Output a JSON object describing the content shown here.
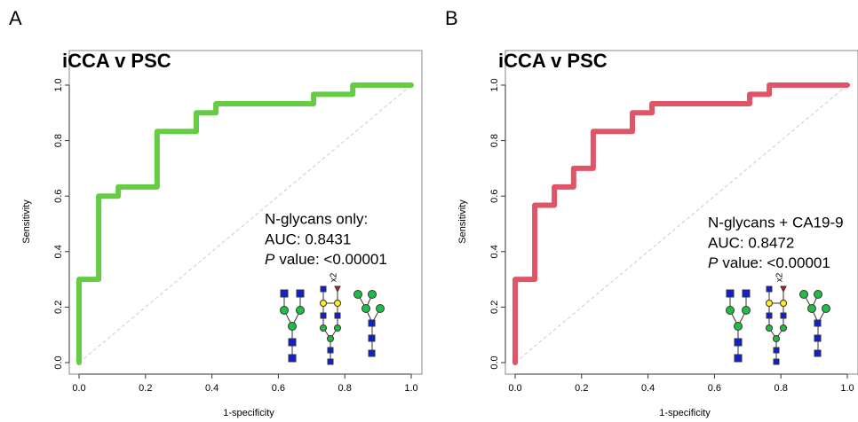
{
  "chart_data": [
    {
      "panel": "A",
      "type": "line",
      "title": "iCCA v PSC",
      "x_label": "1-specificity",
      "y_label": "Sensitivity",
      "x": [
        0,
        0,
        0.059,
        0.059,
        0.118,
        0.118,
        0.235,
        0.235,
        0.353,
        0.353,
        0.412,
        0.412,
        0.706,
        0.706,
        0.824,
        0.824,
        1
      ],
      "values": [
        0,
        0.3,
        0.3,
        0.6,
        0.6,
        0.633,
        0.633,
        0.833,
        0.833,
        0.9,
        0.9,
        0.933,
        0.933,
        0.967,
        0.967,
        1,
        1
      ],
      "color": "#66cc44",
      "xlim": [
        0,
        1
      ],
      "ylim": [
        0,
        1
      ],
      "xticks": [
        {
          "value": 0,
          "label": "0.0"
        },
        0.2,
        0.4,
        0.6,
        0.8,
        {
          "value": 1,
          "label": "1.0"
        }
      ],
      "yticks": [
        {
          "value": 0,
          "label": "0.0"
        },
        0.2,
        0.4,
        0.6,
        0.8,
        {
          "value": 1,
          "label": "1.0"
        }
      ],
      "annotations": [
        "N-glycans only:",
        "AUC: 0.8431"
      ],
      "p_symbol": "P",
      "p_text": "value: <0.00001",
      "glycan_label": "x2"
    },
    {
      "panel": "B",
      "type": "line",
      "title": "iCCA v PSC",
      "x_label": "1-specificity",
      "y_label": "Sensitivity",
      "x": [
        0,
        0,
        0.059,
        0.059,
        0.118,
        0.118,
        0.176,
        0.176,
        0.235,
        0.235,
        0.353,
        0.353,
        0.412,
        0.412,
        0.706,
        0.706,
        0.765,
        0.765,
        1
      ],
      "values": [
        0,
        0.3,
        0.3,
        0.567,
        0.567,
        0.633,
        0.633,
        0.7,
        0.7,
        0.833,
        0.833,
        0.9,
        0.9,
        0.933,
        0.933,
        0.967,
        0.967,
        1,
        1
      ],
      "color": "#e05468",
      "xlim": [
        0,
        1
      ],
      "ylim": [
        0,
        1
      ],
      "xticks": [
        {
          "value": 0,
          "label": "0.0"
        },
        0.2,
        0.4,
        0.6,
        0.8,
        {
          "value": 1,
          "label": "1.0"
        }
      ],
      "yticks": [
        {
          "value": 0,
          "label": "0.0"
        },
        0.2,
        0.4,
        0.6,
        0.8,
        {
          "value": 1,
          "label": "1.0"
        }
      ],
      "annotations": [
        "N-glycans + CA19-9",
        "AUC: 0.8472"
      ],
      "p_symbol": "P",
      "p_text": "value: <0.00001",
      "glycan_label": "x2"
    }
  ]
}
